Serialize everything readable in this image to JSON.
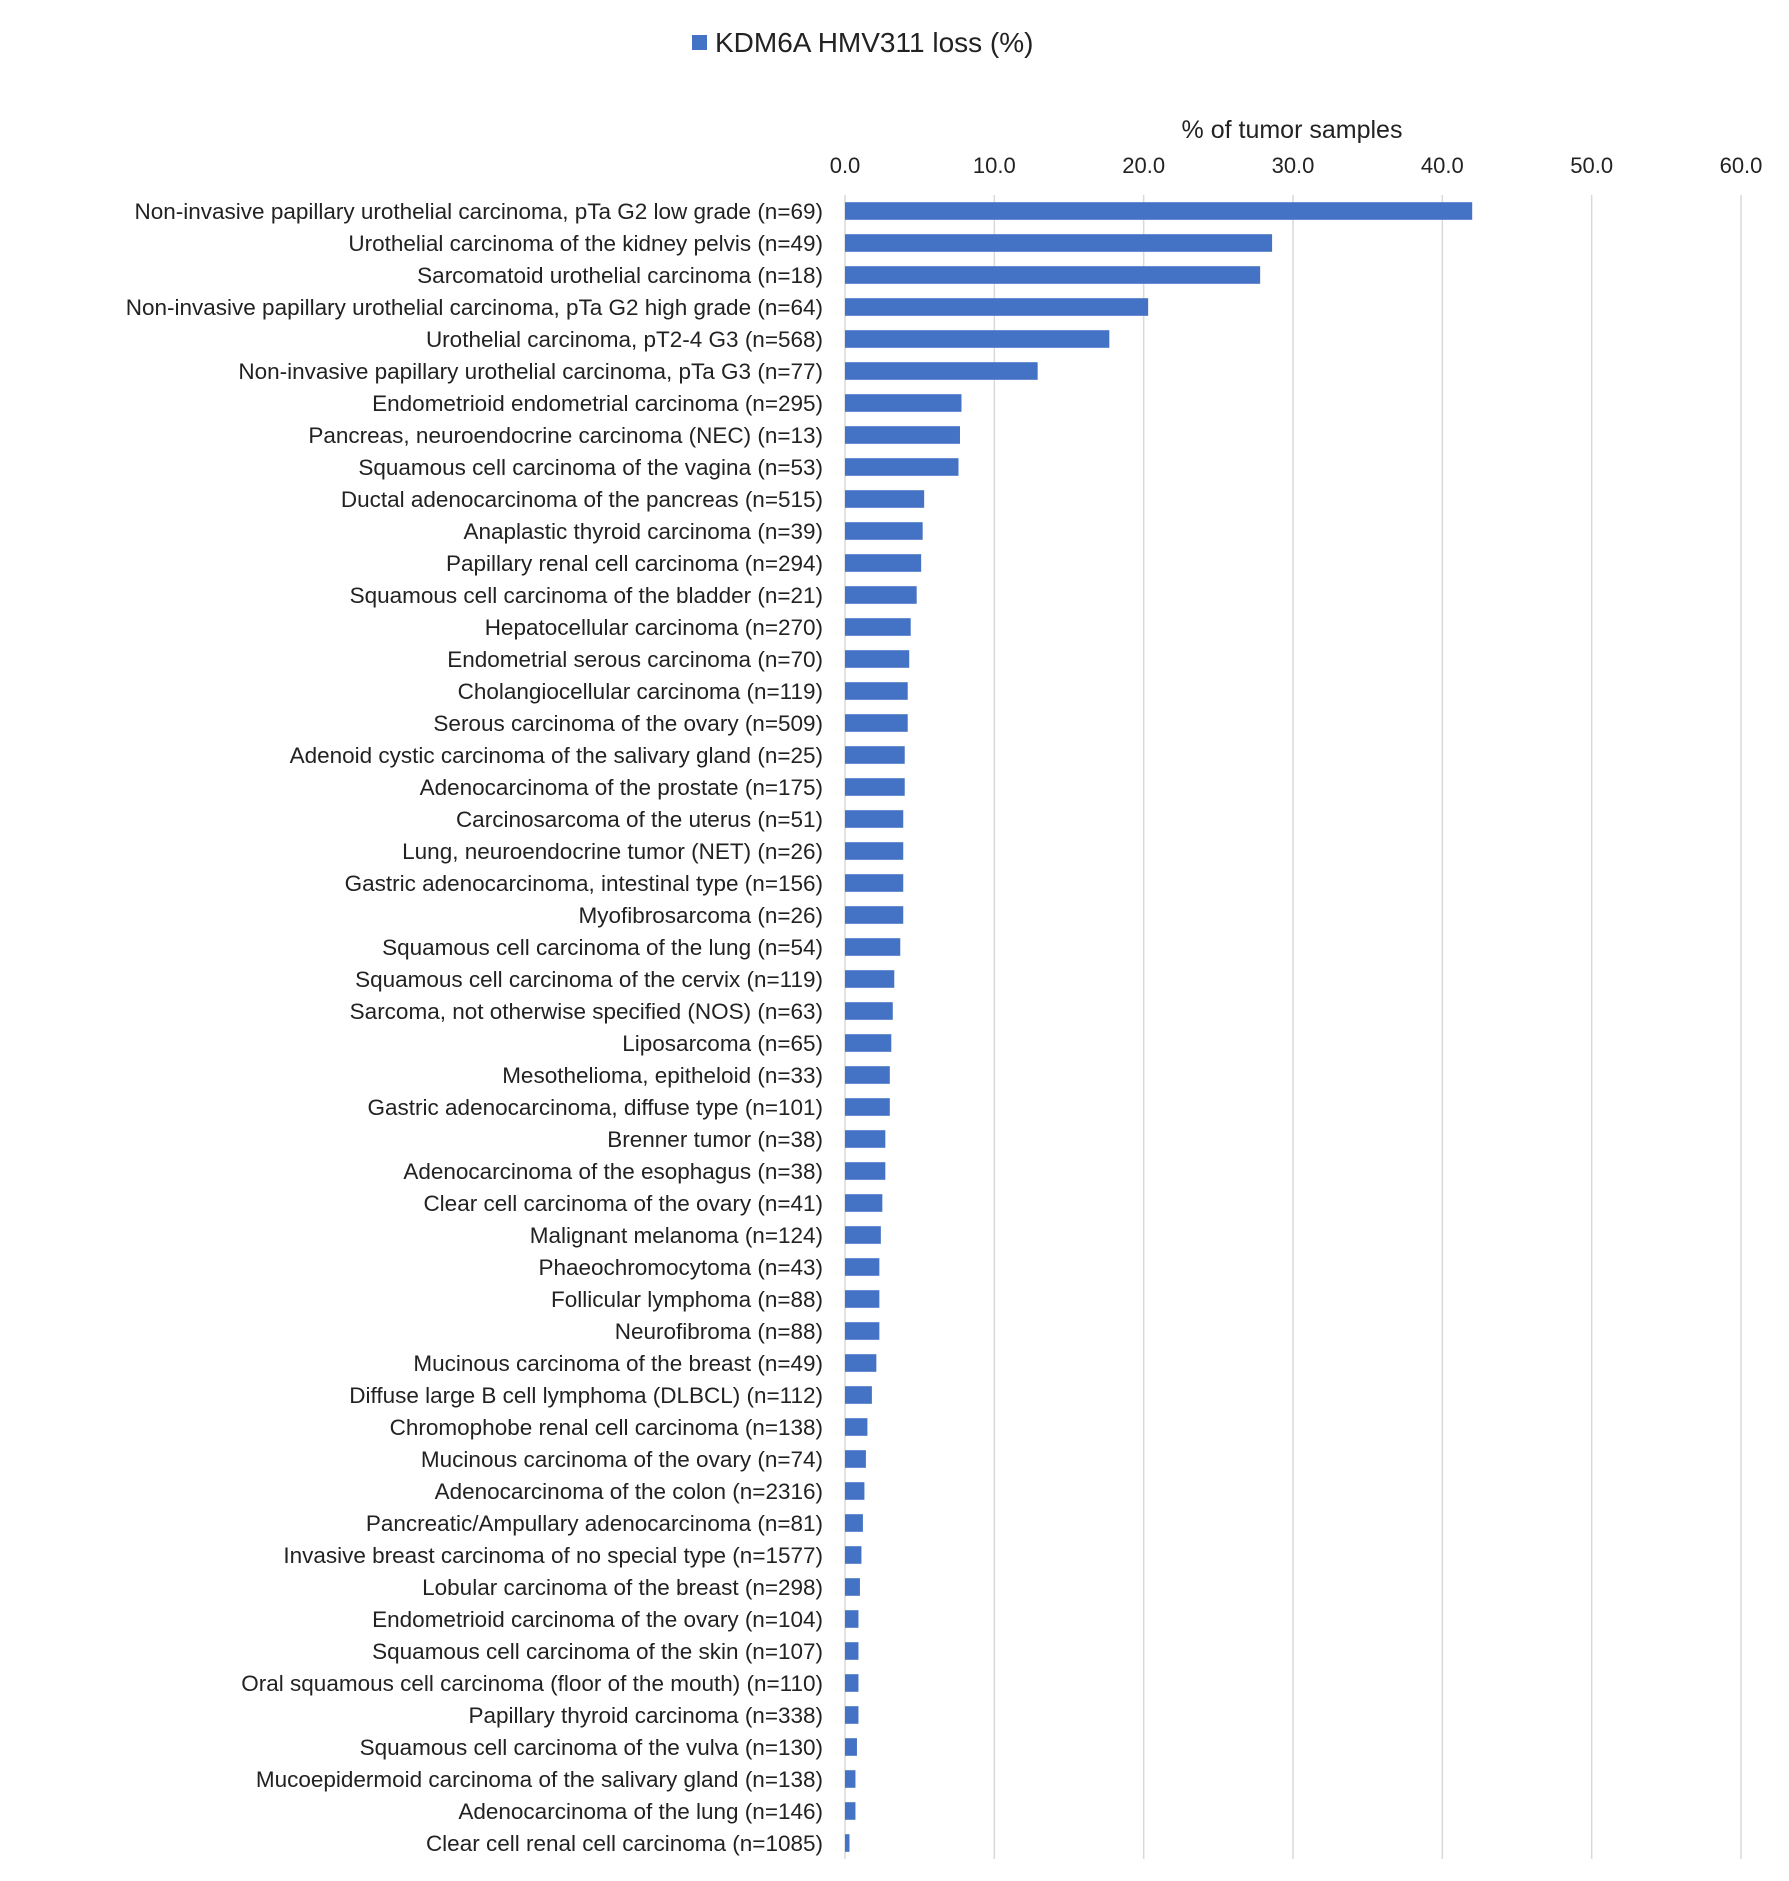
{
  "chart_data": {
    "type": "bar",
    "orientation": "horizontal",
    "legend": {
      "label": "KDM6A HMV311 loss (%)",
      "color": "#4472C4",
      "placement": "top"
    },
    "x_axis": {
      "title": "% of tumor samples",
      "position": "top",
      "range": [
        0,
        60
      ],
      "ticks": [
        "0.0",
        "10.0",
        "20.0",
        "30.0",
        "40.0",
        "50.0",
        "60.0"
      ],
      "grid": true
    },
    "bar_color": "#4472C4",
    "categories": [
      "Non-invasive papillary urothelial carcinoma, pTa G2 low grade (n=69)",
      "Urothelial carcinoma of the kidney pelvis (n=49)",
      "Sarcomatoid urothelial carcinoma (n=18)",
      "Non-invasive papillary urothelial carcinoma, pTa G2 high grade (n=64)",
      "Urothelial carcinoma, pT2-4 G3 (n=568)",
      "Non-invasive papillary urothelial carcinoma, pTa G3 (n=77)",
      "Endometrioid endometrial carcinoma (n=295)",
      "Pancreas, neuroendocrine carcinoma (NEC) (n=13)",
      "Squamous cell carcinoma of the vagina (n=53)",
      "Ductal adenocarcinoma of the pancreas (n=515)",
      "Anaplastic thyroid carcinoma (n=39)",
      "Papillary renal cell carcinoma (n=294)",
      "Squamous cell carcinoma of the bladder (n=21)",
      "Hepatocellular carcinoma (n=270)",
      "Endometrial serous carcinoma (n=70)",
      "Cholangiocellular carcinoma (n=119)",
      "Serous carcinoma of the ovary (n=509)",
      "Adenoid cystic carcinoma of the salivary gland (n=25)",
      "Adenocarcinoma of the prostate (n=175)",
      "Carcinosarcoma of the uterus (n=51)",
      "Lung, neuroendocrine tumor (NET) (n=26)",
      "Gastric adenocarcinoma, intestinal type (n=156)",
      "Myofibrosarcoma (n=26)",
      "Squamous cell carcinoma of the lung (n=54)",
      "Squamous cell carcinoma of the cervix (n=119)",
      "Sarcoma, not otherwise specified (NOS) (n=63)",
      "Liposarcoma (n=65)",
      "Mesothelioma, epitheloid (n=33)",
      "Gastric adenocarcinoma, diffuse type (n=101)",
      "Brenner tumor (n=38)",
      "Adenocarcinoma of the esophagus (n=38)",
      "Clear cell carcinoma of the ovary (n=41)",
      "Malignant melanoma (n=124)",
      "Phaeochromocytoma (n=43)",
      "Follicular lymphoma (n=88)",
      "Neurofibroma (n=88)",
      "Mucinous carcinoma of the breast (n=49)",
      "Diffuse large B cell lymphoma (DLBCL) (n=112)",
      "Chromophobe renal cell carcinoma (n=138)",
      "Mucinous carcinoma of the ovary (n=74)",
      "Adenocarcinoma of the colon (n=2316)",
      "Pancreatic/Ampullary adenocarcinoma (n=81)",
      "Invasive breast carcinoma of no special type (n=1577)",
      "Lobular carcinoma of the breast (n=298)",
      "Endometrioid carcinoma of the ovary (n=104)",
      "Squamous cell carcinoma of the skin (n=107)",
      "Oral squamous cell carcinoma (floor of the mouth) (n=110)",
      "Papillary thyroid carcinoma (n=338)",
      "Squamous cell carcinoma of the vulva (n=130)",
      "Mucoepidermoid carcinoma of the salivary gland (n=138)",
      "Adenocarcinoma of the lung (n=146)",
      "Clear cell renal cell carcinoma (n=1085)"
    ],
    "values": [
      42.0,
      28.6,
      27.8,
      20.3,
      17.7,
      12.9,
      7.8,
      7.7,
      7.6,
      5.3,
      5.2,
      5.1,
      4.8,
      4.4,
      4.3,
      4.2,
      4.2,
      4.0,
      4.0,
      3.9,
      3.9,
      3.9,
      3.9,
      3.7,
      3.3,
      3.2,
      3.1,
      3.0,
      3.0,
      2.7,
      2.7,
      2.5,
      2.4,
      2.3,
      2.3,
      2.3,
      2.1,
      1.8,
      1.5,
      1.4,
      1.3,
      1.2,
      1.1,
      1.0,
      0.9,
      0.9,
      0.9,
      0.9,
      0.8,
      0.7,
      0.7,
      0.3
    ]
  }
}
